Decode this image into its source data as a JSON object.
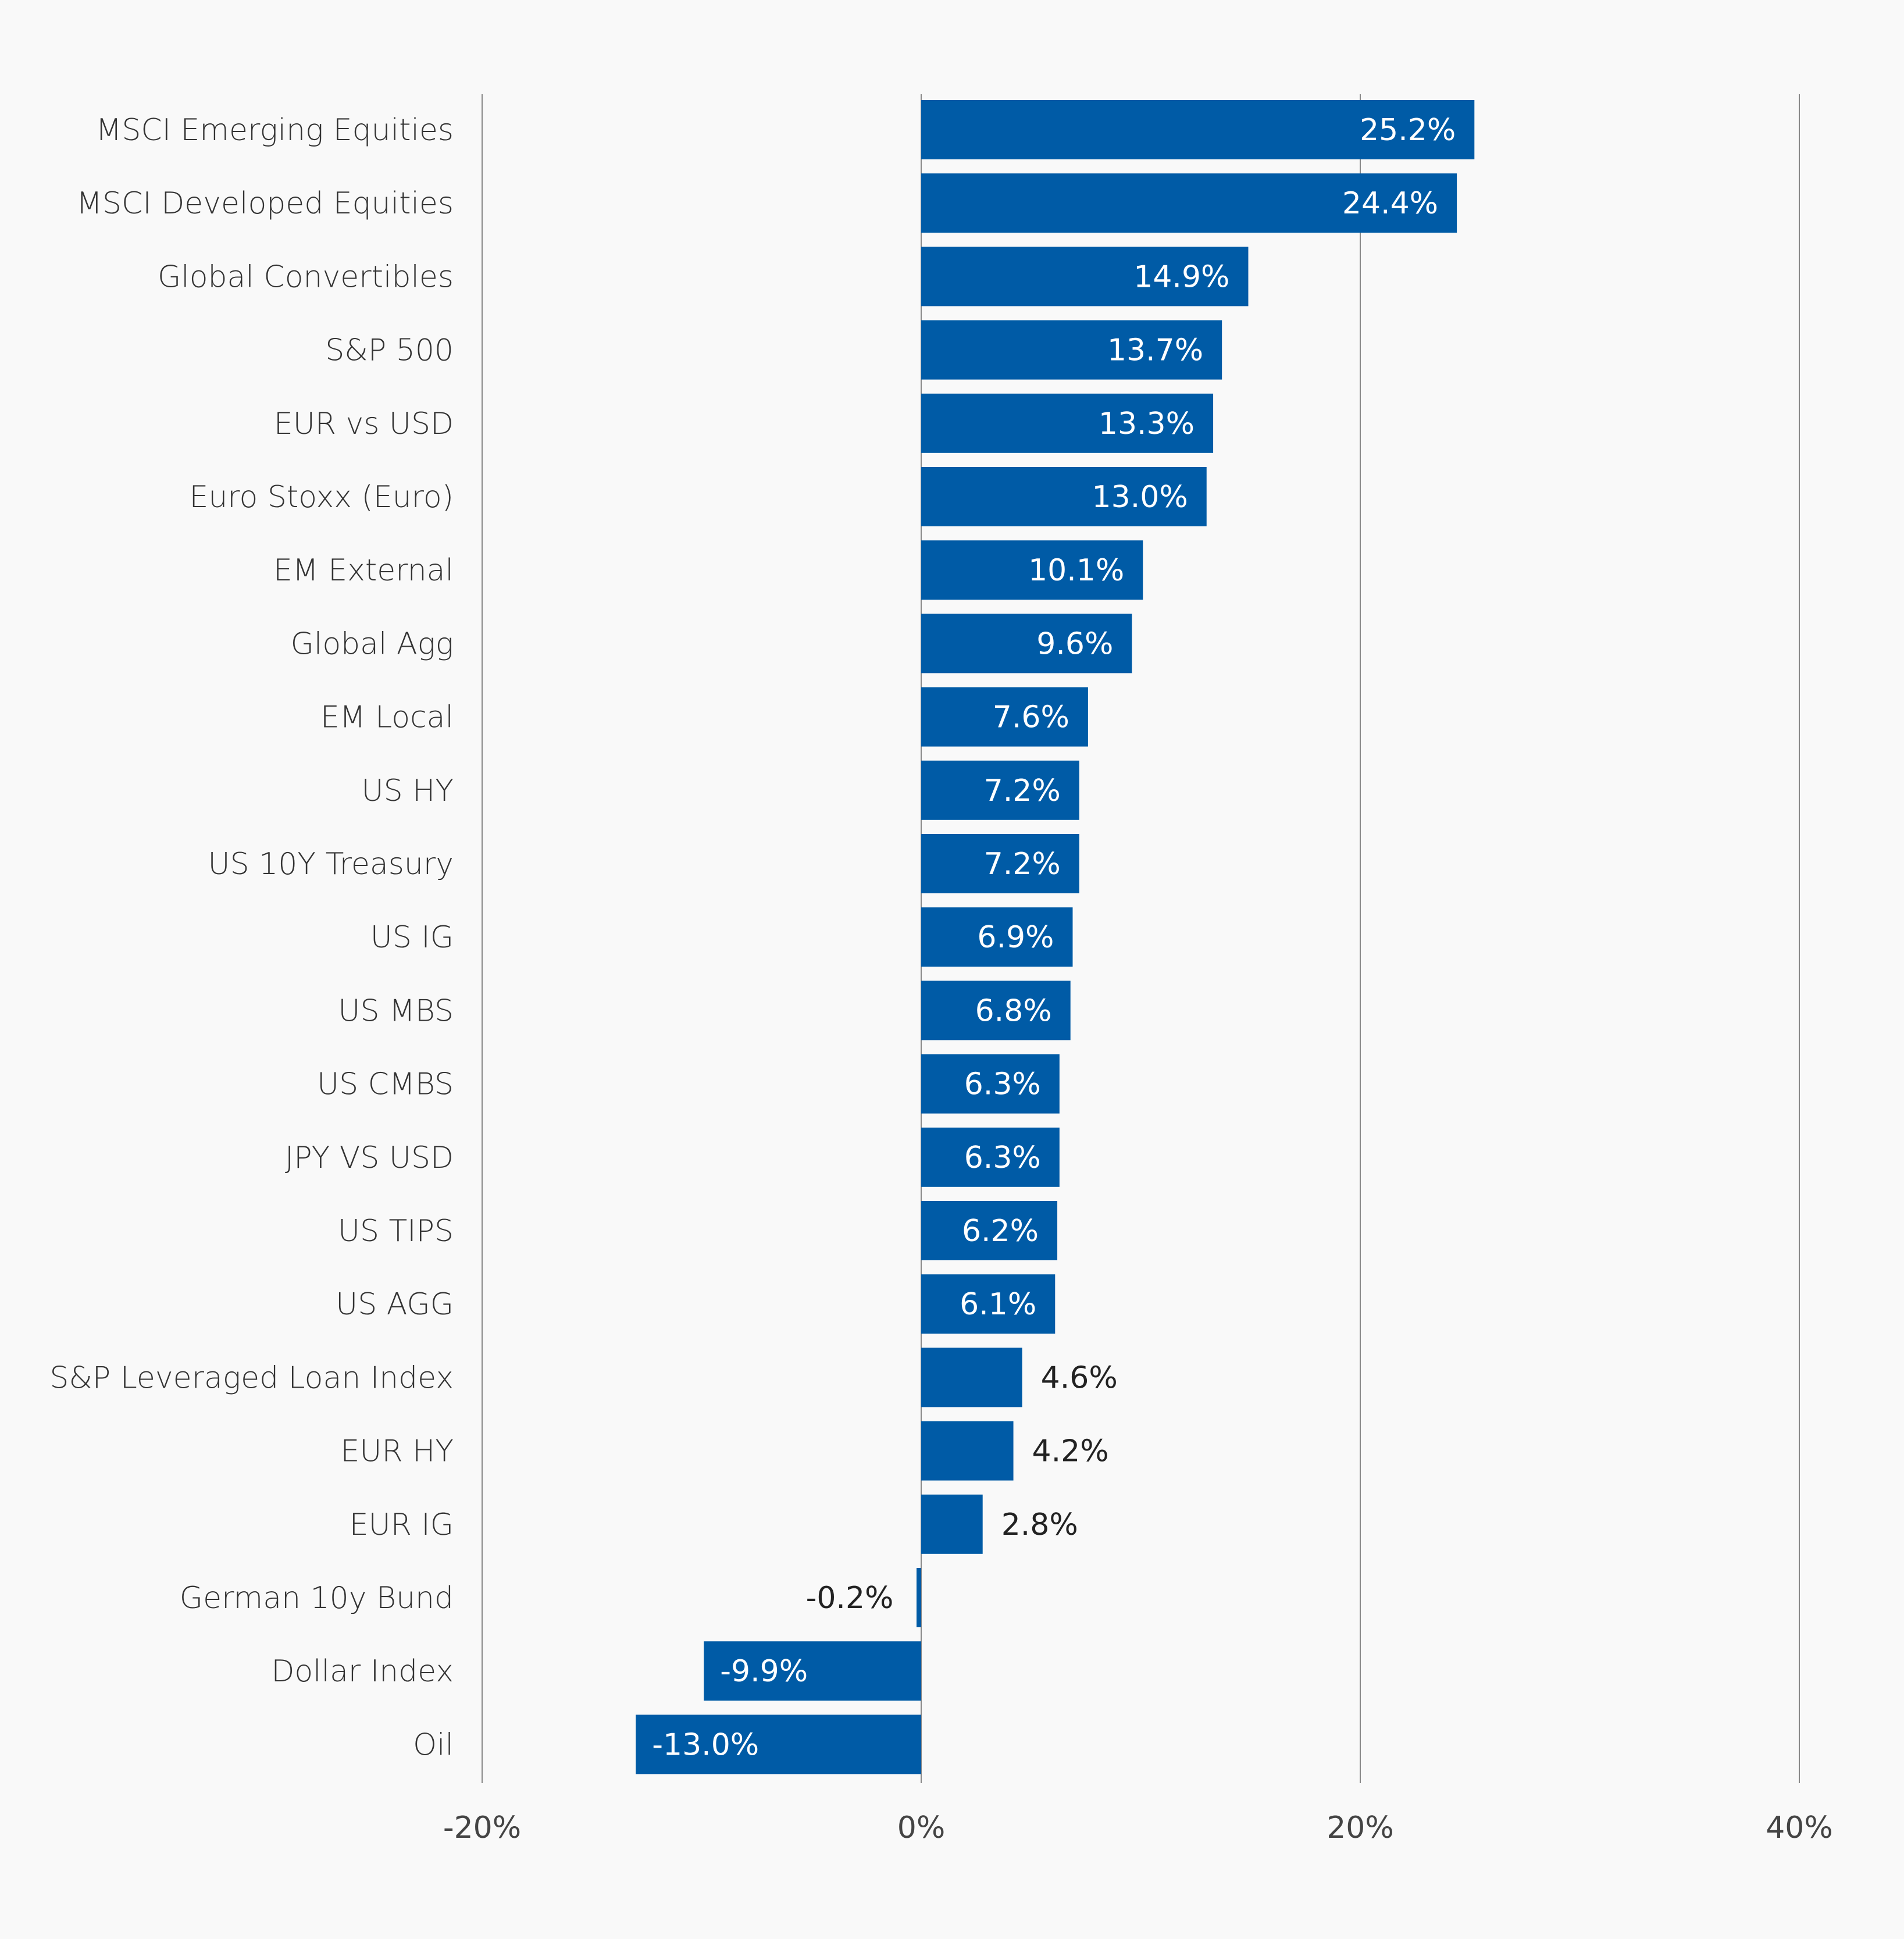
{
  "chart_data": {
    "type": "bar",
    "orientation": "horizontal",
    "categories": [
      "MSCI Emerging Equities",
      "MSCI Developed Equities",
      "Global Convertibles",
      "S&P 500",
      "EUR vs USD",
      "Euro Stoxx (Euro)",
      "EM External",
      "Global Agg",
      "EM Local",
      "US HY",
      "US 10Y Treasury",
      "US IG",
      "US MBS",
      "US CMBS",
      "JPY VS USD",
      "US TIPS",
      "US AGG",
      "S&P Leveraged Loan Index",
      "EUR HY",
      "EUR IG",
      "German 10y Bund",
      "Dollar Index",
      "Oil"
    ],
    "values": [
      25.2,
      24.4,
      14.9,
      13.7,
      13.3,
      13.0,
      10.1,
      9.6,
      7.6,
      7.2,
      7.2,
      6.9,
      6.8,
      6.3,
      6.3,
      6.2,
      6.1,
      4.6,
      4.2,
      2.8,
      -0.2,
      -9.9,
      -13.0
    ],
    "value_labels": [
      "25.2%",
      "24.4%",
      "14.9%",
      "13.7%",
      "13.3%",
      "13.0%",
      "10.1%",
      "9.6%",
      "7.6%",
      "7.2%",
      "7.2%",
      "6.9%",
      "6.8%",
      "6.3%",
      "6.3%",
      "6.2%",
      "6.1%",
      "4.6%",
      "4.2%",
      "2.8%",
      "-0.2%",
      "-9.9%",
      "-13.0%"
    ],
    "xlim": [
      -20,
      40
    ],
    "xticks": [
      -20,
      0,
      20,
      40
    ],
    "xtick_labels": [
      "-20%",
      "0%",
      "20%",
      "40%"
    ],
    "grid": "vertical",
    "colors": {
      "bar": "#005ba6",
      "background": "#f9f9f9",
      "grid": "#888888"
    }
  }
}
